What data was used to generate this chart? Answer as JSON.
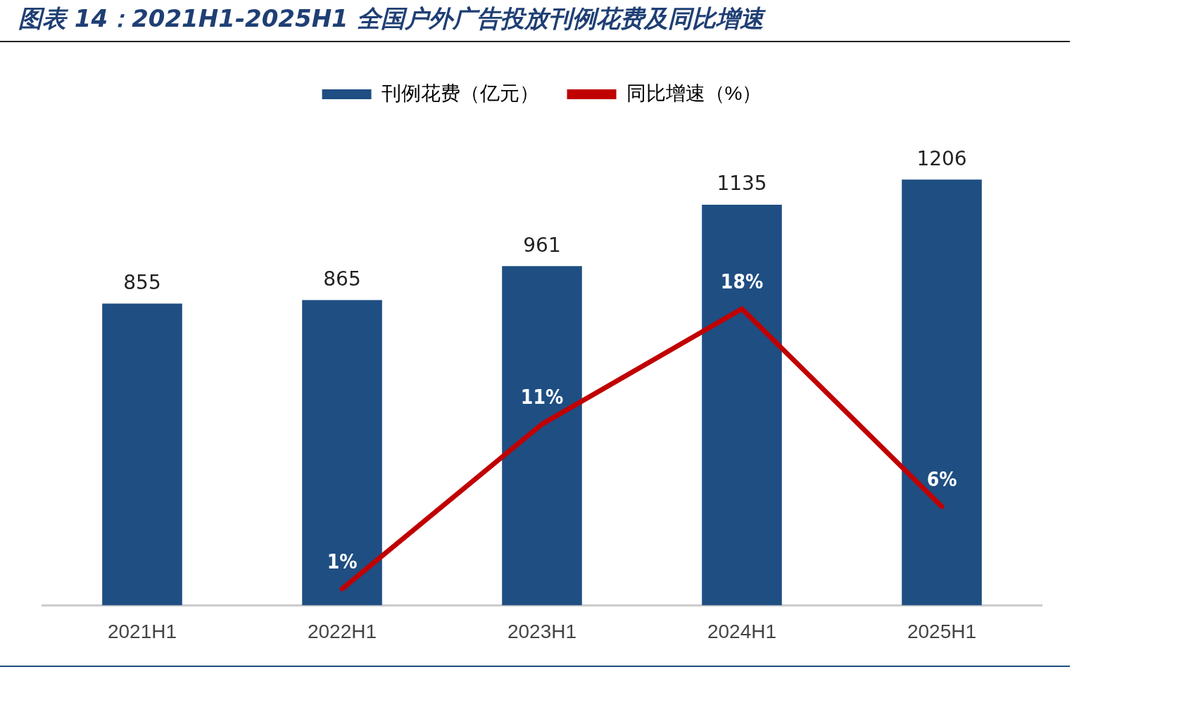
{
  "chart_data": {
    "type": "bar",
    "title": "图表 14：2021H1-2025H1 全国户外广告投放刊例花费及同比增速",
    "categories": [
      "2021H1",
      "2022H1",
      "2023H1",
      "2024H1",
      "2025H1"
    ],
    "series": [
      {
        "name": "刊例花费（亿元）",
        "color": "#1f4e82",
        "values": [
          855,
          865,
          961,
          1135,
          1206
        ]
      },
      {
        "name": "同比增速（%）",
        "type": "line",
        "axis": "y2",
        "color": "#c00000",
        "values": [
          null,
          1,
          11,
          18,
          6
        ],
        "value_labels": [
          null,
          "1%",
          "11%",
          "18%",
          "6%"
        ]
      }
    ],
    "tick_labels": "x",
    "legend": "top",
    "data_labels": true,
    "marker": "none"
  }
}
